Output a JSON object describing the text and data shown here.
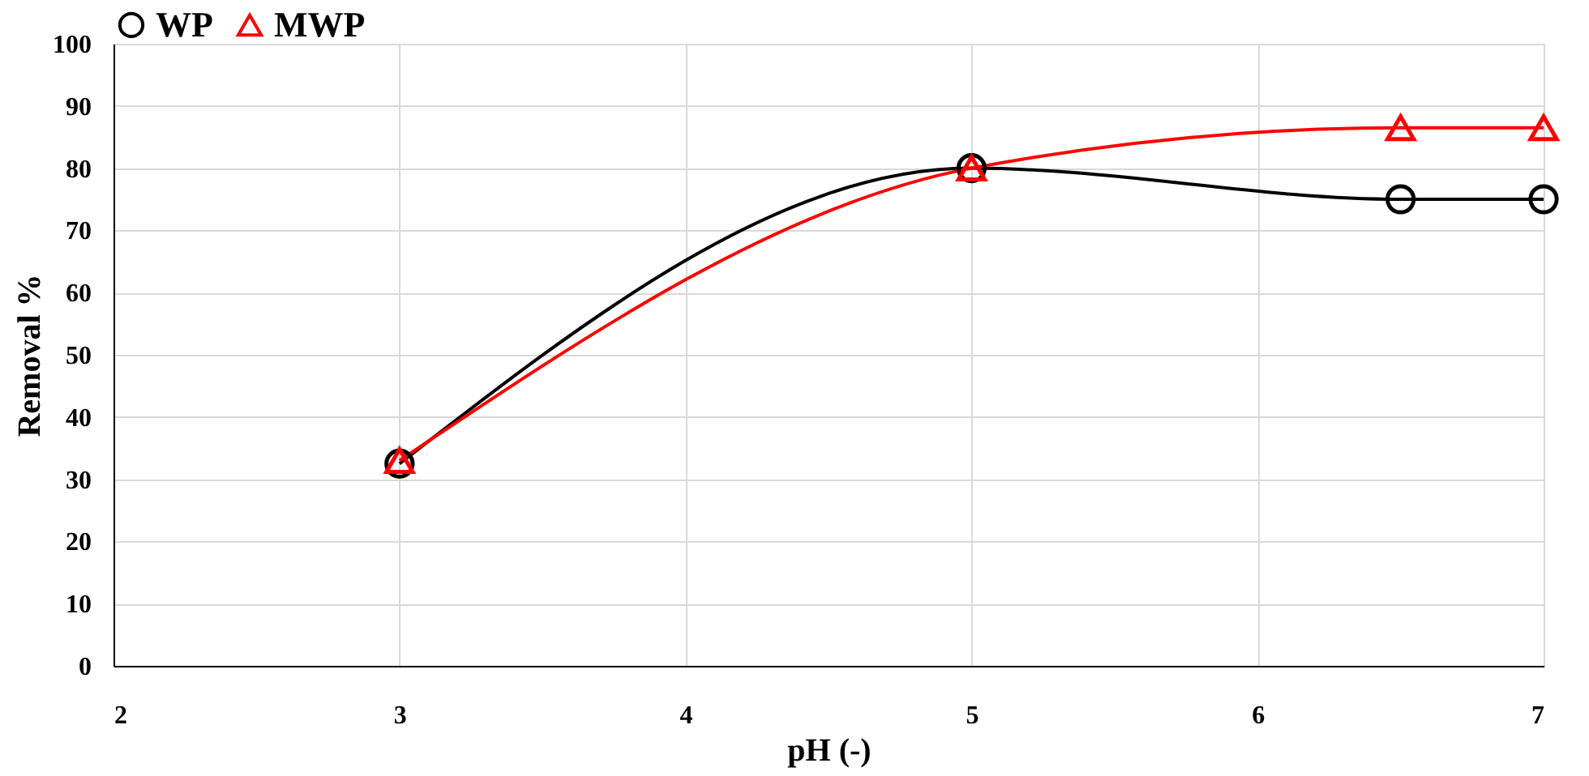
{
  "chart_data": {
    "type": "line",
    "xlabel": "pH (-)",
    "ylabel": "Removal %",
    "series": [
      {
        "name": "WP",
        "color": "#000000",
        "marker": "circle",
        "x": [
          3,
          5,
          6.5,
          7
        ],
        "values": [
          32.5,
          80,
          75,
          75
        ]
      },
      {
        "name": "MWP",
        "color": "#ff0000",
        "marker": "triangle",
        "x": [
          3,
          5,
          6.5,
          7
        ],
        "values": [
          33,
          80,
          86.5,
          86.5
        ]
      }
    ],
    "xlim": [
      2,
      7
    ],
    "xticks": [
      2,
      3,
      4,
      5,
      6,
      7
    ],
    "ylim": [
      0,
      100
    ],
    "yticks": [
      0,
      10,
      20,
      30,
      40,
      50,
      60,
      70,
      80,
      90,
      100
    ],
    "grid": true,
    "legend": "top",
    "line_style": "solid"
  }
}
